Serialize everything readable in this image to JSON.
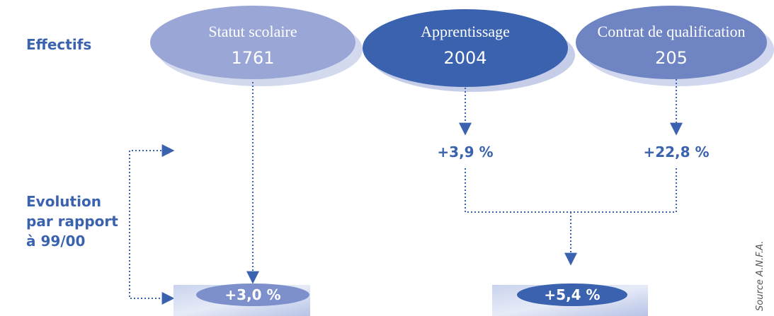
{
  "labels": {
    "effectifs": "Effectifs",
    "evolution": [
      "Evolution",
      "par rapport",
      "à 99/00"
    ]
  },
  "nodes": [
    {
      "title": "Statut scolaire",
      "value": 1761,
      "evolution": null
    },
    {
      "title": "Apprentissage",
      "value": 2004,
      "evolution": "+3,9 %"
    },
    {
      "title": "Contrat de qualification",
      "value": 205,
      "evolution": "+22,8 %"
    }
  ],
  "totals": [
    "+3,0 %",
    "+5,4 %"
  ],
  "source": "Source A.N.F.A."
}
